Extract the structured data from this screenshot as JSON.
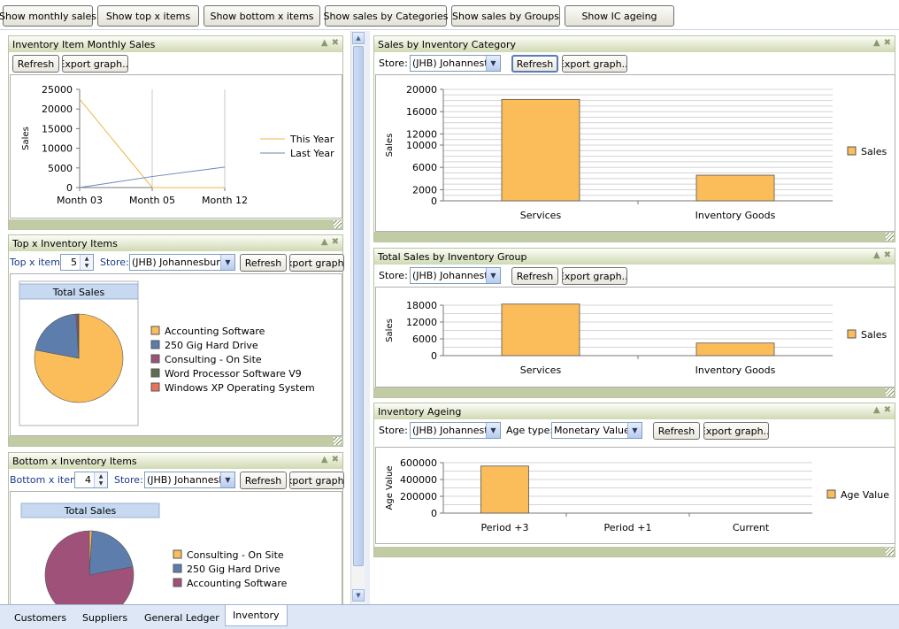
{
  "toolbar": {
    "buttons": [
      "Show monthly sales",
      "Show top x items",
      "Show bottom x items",
      "Show sales by Categories",
      "Show sales by Groups",
      "Show IC ageing"
    ]
  },
  "common": {
    "refresh": "Refresh",
    "export": "Export graph...",
    "store_label": "Store:"
  },
  "monthly": {
    "title": "Inventory Item Monthly Sales",
    "chart_data": {
      "type": "line",
      "x": [
        "Month 03",
        "Month 05",
        "Month 12"
      ],
      "ylabel": "Sales",
      "ylim": [
        0,
        25000
      ],
      "yticks": [
        "25000",
        "20000",
        "15000",
        "10000",
        "5000",
        "0"
      ],
      "series": [
        {
          "name": "This Year",
          "values": [
            22500,
            0,
            0
          ],
          "color": "#f0b64a"
        },
        {
          "name": "Last Year",
          "values": [
            0,
            2800,
            5200
          ],
          "color": "#6a86b6"
        }
      ]
    }
  },
  "topx": {
    "title": "Top x Inventory Items",
    "count_label": "Top x items:",
    "count": "5",
    "store": "(JHB) Johannesburg",
    "chart_data": {
      "type": "pie",
      "title": "Total Sales",
      "labels": [
        "Accounting Software",
        "250 Gig Hard Drive",
        "Consulting - On Site",
        "Word Processor Software V9",
        "Windows XP Operating System"
      ],
      "values": [
        78,
        21,
        0.6,
        0.2,
        0.2
      ],
      "colors": [
        "#fbbd59",
        "#5d7dad",
        "#a0517a",
        "#5c6e4e",
        "#e8725a"
      ]
    }
  },
  "bottomx": {
    "title": "Bottom x Inventory Items",
    "count_label": "Bottom x items:",
    "count": "4",
    "store": "(JHB) Johannesb",
    "chart_data": {
      "type": "pie",
      "title": "Total Sales",
      "labels": [
        "Consulting - On Site",
        "250 Gig Hard Drive",
        "Accounting Software"
      ],
      "values": [
        1,
        21,
        78
      ],
      "colors": [
        "#fbbd59",
        "#5d7dad",
        "#a0517a"
      ]
    }
  },
  "bycat": {
    "title": "Sales by Inventory Category",
    "store": "(JHB) Johannest",
    "chart_data": {
      "type": "bar",
      "categories": [
        "Services",
        "Inventory Goods"
      ],
      "values": [
        18200,
        4600
      ],
      "ylabel": "Sales",
      "ylim": [
        0,
        20000
      ],
      "yticks": [
        "20000",
        "16000",
        "12000",
        "10000",
        "6000",
        "2000",
        "0"
      ],
      "series": [
        {
          "name": "Sales"
        }
      ],
      "color": "#fbbd59"
    }
  },
  "bygroup": {
    "title": "Total Sales by Inventory Group",
    "store": "(JHB) Johannest",
    "chart_data": {
      "type": "bar",
      "categories": [
        "Services",
        "Inventory Goods"
      ],
      "values": [
        18400,
        4500
      ],
      "ylabel": "Sales",
      "ylim": [
        0,
        18000
      ],
      "yticks": [
        "18000",
        "12000",
        "6000",
        "0"
      ],
      "series": [
        {
          "name": "Sales"
        }
      ],
      "color": "#fbbd59"
    }
  },
  "ageing": {
    "title": "Inventory Ageing",
    "store": "(JHB) Johannest",
    "agetype_label": "Age type:",
    "agetype": "Monetary Value",
    "chart_data": {
      "type": "bar",
      "categories": [
        "Period +3",
        "Period +1",
        "Current"
      ],
      "values": [
        560000,
        0,
        0
      ],
      "ylabel": "Age Value",
      "ylim": [
        0,
        600000
      ],
      "yticks": [
        "600000",
        "400000",
        "200000",
        "0"
      ],
      "series": [
        {
          "name": "Age Value"
        }
      ],
      "color": "#fbbd59"
    }
  },
  "tabs": [
    "Customers",
    "Suppliers",
    "General Ledger",
    "Inventory"
  ]
}
